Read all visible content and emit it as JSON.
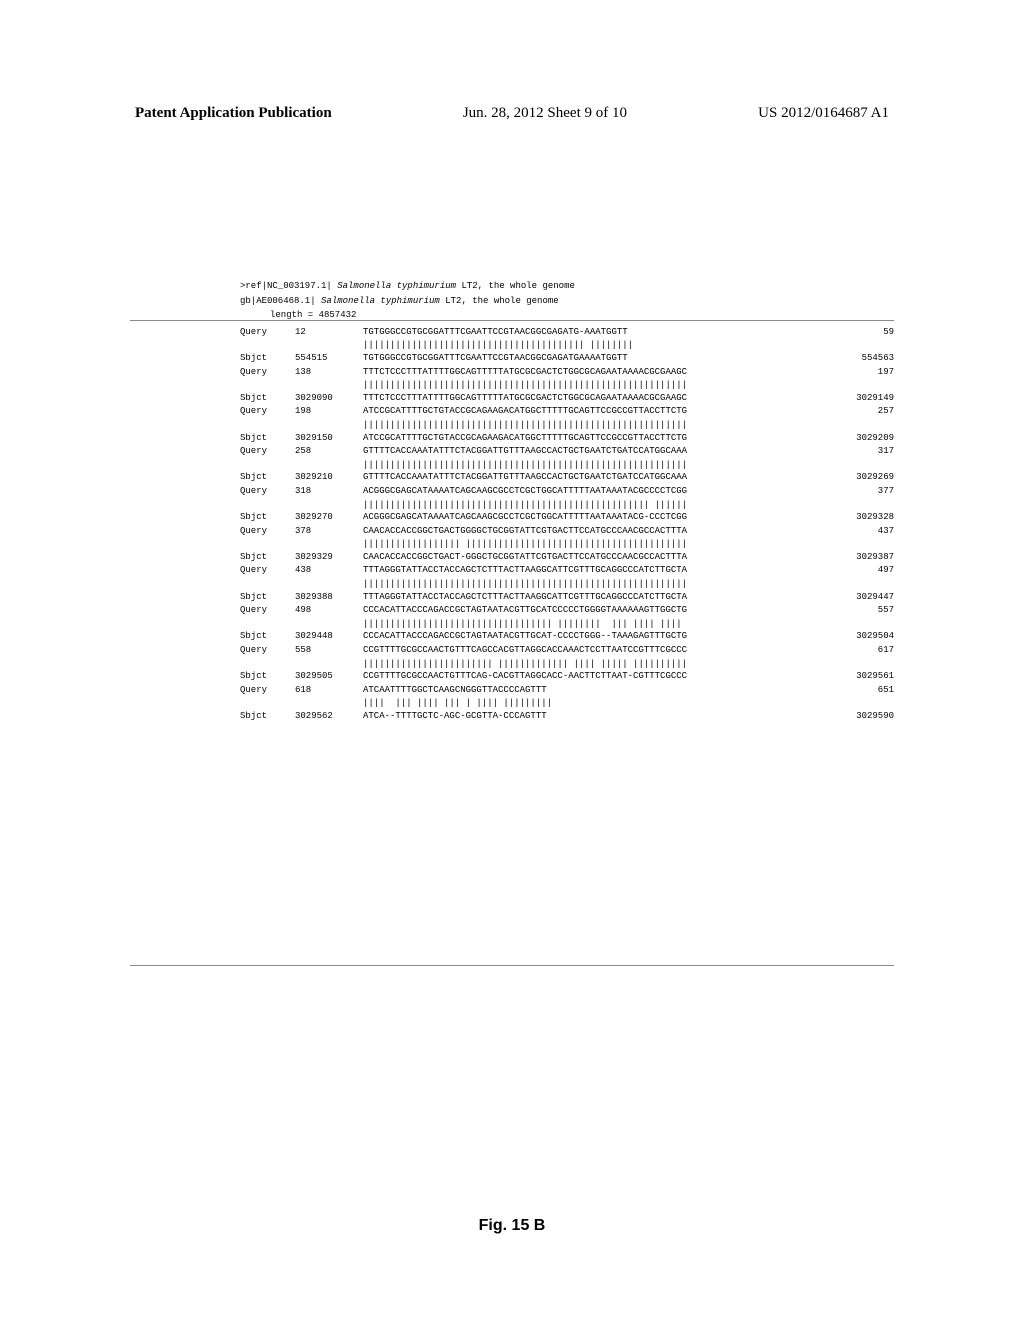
{
  "header": {
    "left": "Patent Application Publication",
    "center": "Jun. 28, 2012  Sheet 9 of 10",
    "right": "US 2012/0164687 A1"
  },
  "reference": {
    "line1_prefix": ">ref|NC_003197.1|  ",
    "line1_italic": "Salmonella typhimurium",
    "line1_suffix": " LT2, the whole genome",
    "line2_prefix": " gb|AE006468.1|  ",
    "line2_italic": "Salmonella typhimurium",
    "line2_suffix": " LT2, the whole genome",
    "length": "length = 4857432"
  },
  "alignment": [
    {
      "label": "Query",
      "start": "12",
      "seq": "TGTGGGCCGTGCGGATTTCGAATTCCGTAACGGCGAGATG-AAATGGTT",
      "end": "59"
    },
    {
      "match": "||||||||||||||||||||||||||||||||||||||||| ||||||||"
    },
    {
      "label": "Sbjct",
      "start": "554515",
      "seq": "TGTGGGCCGTGCGGATTTCGAATTCCGTAACGGCGAGATGAAAATGGTT",
      "end": "554563"
    },
    {
      "label": "Query",
      "start": "138",
      "seq": "TTTCTCCCTTTATTTTGGCAGTTTTTATGCGCGACTCTGGCGCAGAATAAAACGCGAAGC",
      "end": "197"
    },
    {
      "match": "||||||||||||||||||||||||||||||||||||||||||||||||||||||||||||"
    },
    {
      "label": "Sbjct",
      "start": "3029090",
      "seq": "TTTCTCCCTTTATTTTGGCAGTTTTTATGCGCGACTCTGGCGCAGAATAAAACGCGAAGC",
      "end": "3029149"
    },
    {
      "label": "Query",
      "start": "198",
      "seq": "ATCCGCATTTTGCTGTACCGCAGAAGACATGGCTTTTTGCAGTTCCGCCGTTACCTTCTG",
      "end": "257"
    },
    {
      "match": "||||||||||||||||||||||||||||||||||||||||||||||||||||||||||||"
    },
    {
      "label": "Sbjct",
      "start": "3029150",
      "seq": "ATCCGCATTTTGCTGTACCGCAGAAGACATGGCTTTTTGCAGTTCCGCCGTTACCTTCTG",
      "end": "3029209"
    },
    {
      "label": "Query",
      "start": "258",
      "seq": "GTTTTCACCAAATATTTCTACGGATTGTTTAAGCCACTGCTGAATCTGATCCATGGCAAA",
      "end": "317"
    },
    {
      "match": "||||||||||||||||||||||||||||||||||||||||||||||||||||||||||||"
    },
    {
      "label": "Sbjct",
      "start": "3029210",
      "seq": "GTTTTCACCAAATATTTCTACGGATTGTTTAAGCCACTGCTGAATCTGATCCATGGCAAA",
      "end": "3029269"
    },
    {
      "label": "Query",
      "start": "318",
      "seq": "ACGGGCGAGCATAAAATCAGCAAGCGCCTCGCTGGCATTTTTAATAAATACGCCCCTCGG",
      "end": "377"
    },
    {
      "match": "||||||||||||||||||||||||||||||||||||||||||||||||||||| ||||||"
    },
    {
      "label": "Sbjct",
      "start": "3029270",
      "seq": "ACGGGCGAGCATAAAATCAGCAAGCGCCTCGCTGGCATTTTTAATAAATACG-CCCTCGG",
      "end": "3029328"
    },
    {
      "label": "Query",
      "start": "378",
      "seq": "CAACACCACCGGCTGACTGGGGCTGCGGTATTCGTGACTTCCATGCCCAACGCCACTTTA",
      "end": "437"
    },
    {
      "match": "|||||||||||||||||| |||||||||||||||||||||||||||||||||||||||||"
    },
    {
      "label": "Sbjct",
      "start": "3029329",
      "seq": "CAACACCACCGGCTGACT-GGGCTGCGGTATTCGTGACTTCCATGCCCAACGCCACTTTA",
      "end": "3029387"
    },
    {
      "label": "Query",
      "start": "438",
      "seq": "TTTAGGGTATTACCTACCAGCTCTTTACTTAAGGCATTCGTTTGCAGGCCCATCTTGCTA",
      "end": "497"
    },
    {
      "match": "||||||||||||||||||||||||||||||||||||||||||||||||||||||||||||"
    },
    {
      "label": "Sbjct",
      "start": "3029388",
      "seq": "TTTAGGGTATTACCTACCAGCTCTTTACTTAAGGCATTCGTTTGCAGGCCCATCTTGCTA",
      "end": "3029447"
    },
    {
      "label": "Query",
      "start": "498",
      "seq": "CCCACATTACCCAGACCGCTAGTAATACGTTGCATCCCCCTGGGGTAAAAAAGTTGGCTG",
      "end": "557"
    },
    {
      "match": "||||||||||||||||||||||||||||||||||| ||||||||  ||| |||| ||||"
    },
    {
      "label": "Sbjct",
      "start": "3029448",
      "seq": "CCCACATTACCCAGACCGCTAGTAATACGTTGCAT-CCCCTGGG--TAAAGAGTTTGCTG",
      "end": "3029504"
    },
    {
      "label": "Query",
      "start": "558",
      "seq": "CCGTTTTGCGCCAACTGTTTCAGCCACGTTAGGCACCAAACTCCTTAATCCGTTTCGCCC",
      "end": "617"
    },
    {
      "match": "|||||||||||||||||||||||| ||||||||||||| |||| ||||| ||||||||||"
    },
    {
      "label": "Sbjct",
      "start": "3029505",
      "seq": "CCGTTTTGCGCCAACTGTTTCAG-CACGTTAGGCACC-AACTTCTTAAT-CGTTTCGCCC",
      "end": "3029561"
    },
    {
      "label": "Query",
      "start": "618",
      "seq": "ATCAATTTTGGCTCAAGCNGGGTTACCCCAGTTT",
      "end": "651"
    },
    {
      "match": "||||  ||| |||| ||| | |||| |||||||||"
    },
    {
      "label": "Sbjct",
      "start": "3029562",
      "seq": "ATCA--TTTTGCTC-AGC-GCGTTA-CCCAGTTT",
      "end": "3029590"
    }
  ],
  "figure_caption": "Fig. 15 B"
}
